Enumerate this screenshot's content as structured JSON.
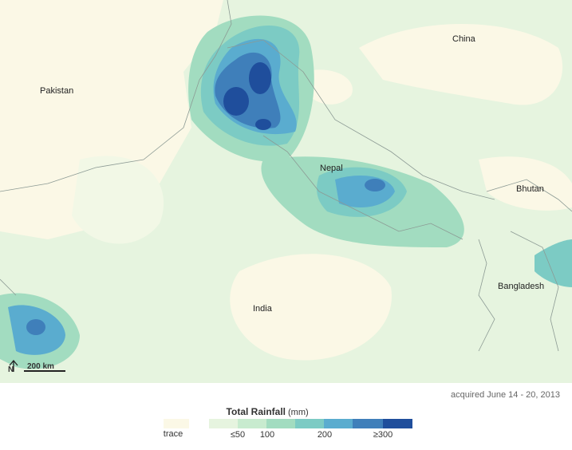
{
  "map": {
    "labels": [
      "Pakistan",
      "China",
      "Nepal",
      "Bhutan",
      "Bangladesh",
      "India"
    ]
  },
  "scale": {
    "north": "N",
    "distance": "200 km"
  },
  "caption": "acquired June 14 - 20, 2013",
  "legend": {
    "title": "Total Rainfall",
    "unit": "(mm)",
    "trace": "trace",
    "ticks": [
      "≤50",
      "100",
      "200",
      "≥300"
    ]
  }
}
